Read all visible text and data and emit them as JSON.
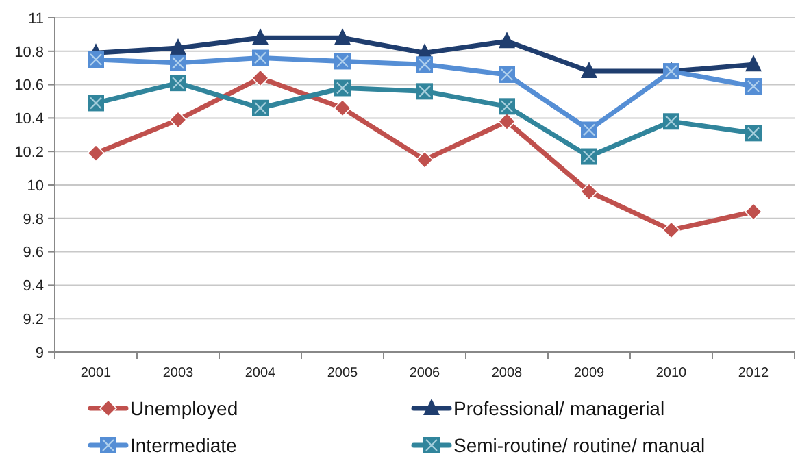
{
  "chart_data": {
    "type": "line",
    "categories": [
      "2001",
      "2003",
      "2004",
      "2005",
      "2006",
      "2008",
      "2009",
      "2010",
      "2012"
    ],
    "series": [
      {
        "name": "Unemployed",
        "color": "#c0504d",
        "marker": "diamond",
        "values": [
          10.19,
          10.39,
          10.64,
          10.46,
          10.15,
          10.38,
          9.96,
          9.73,
          9.84
        ]
      },
      {
        "name": "Professional/ managerial",
        "color": "#1f3d6e",
        "marker": "triangle",
        "values": [
          10.79,
          10.82,
          10.88,
          10.88,
          10.79,
          10.86,
          10.68,
          10.68,
          10.72
        ]
      },
      {
        "name": "Intermediate",
        "color": "#558ed5",
        "marker": "square",
        "values": [
          10.75,
          10.73,
          10.76,
          10.74,
          10.72,
          10.66,
          10.33,
          10.68,
          10.59
        ]
      },
      {
        "name": "Semi-routine/ routine/ manual",
        "color": "#31859c",
        "marker": "square",
        "values": [
          10.49,
          10.61,
          10.46,
          10.58,
          10.56,
          10.47,
          10.17,
          10.38,
          10.31
        ]
      }
    ],
    "ylim": [
      9,
      11
    ],
    "yticks": [
      9,
      9.2,
      9.4,
      9.6,
      9.8,
      10,
      10.2,
      10.4,
      10.6,
      10.8,
      11
    ],
    "grid": "y",
    "legend": "bottom",
    "line_style": "solid"
  }
}
